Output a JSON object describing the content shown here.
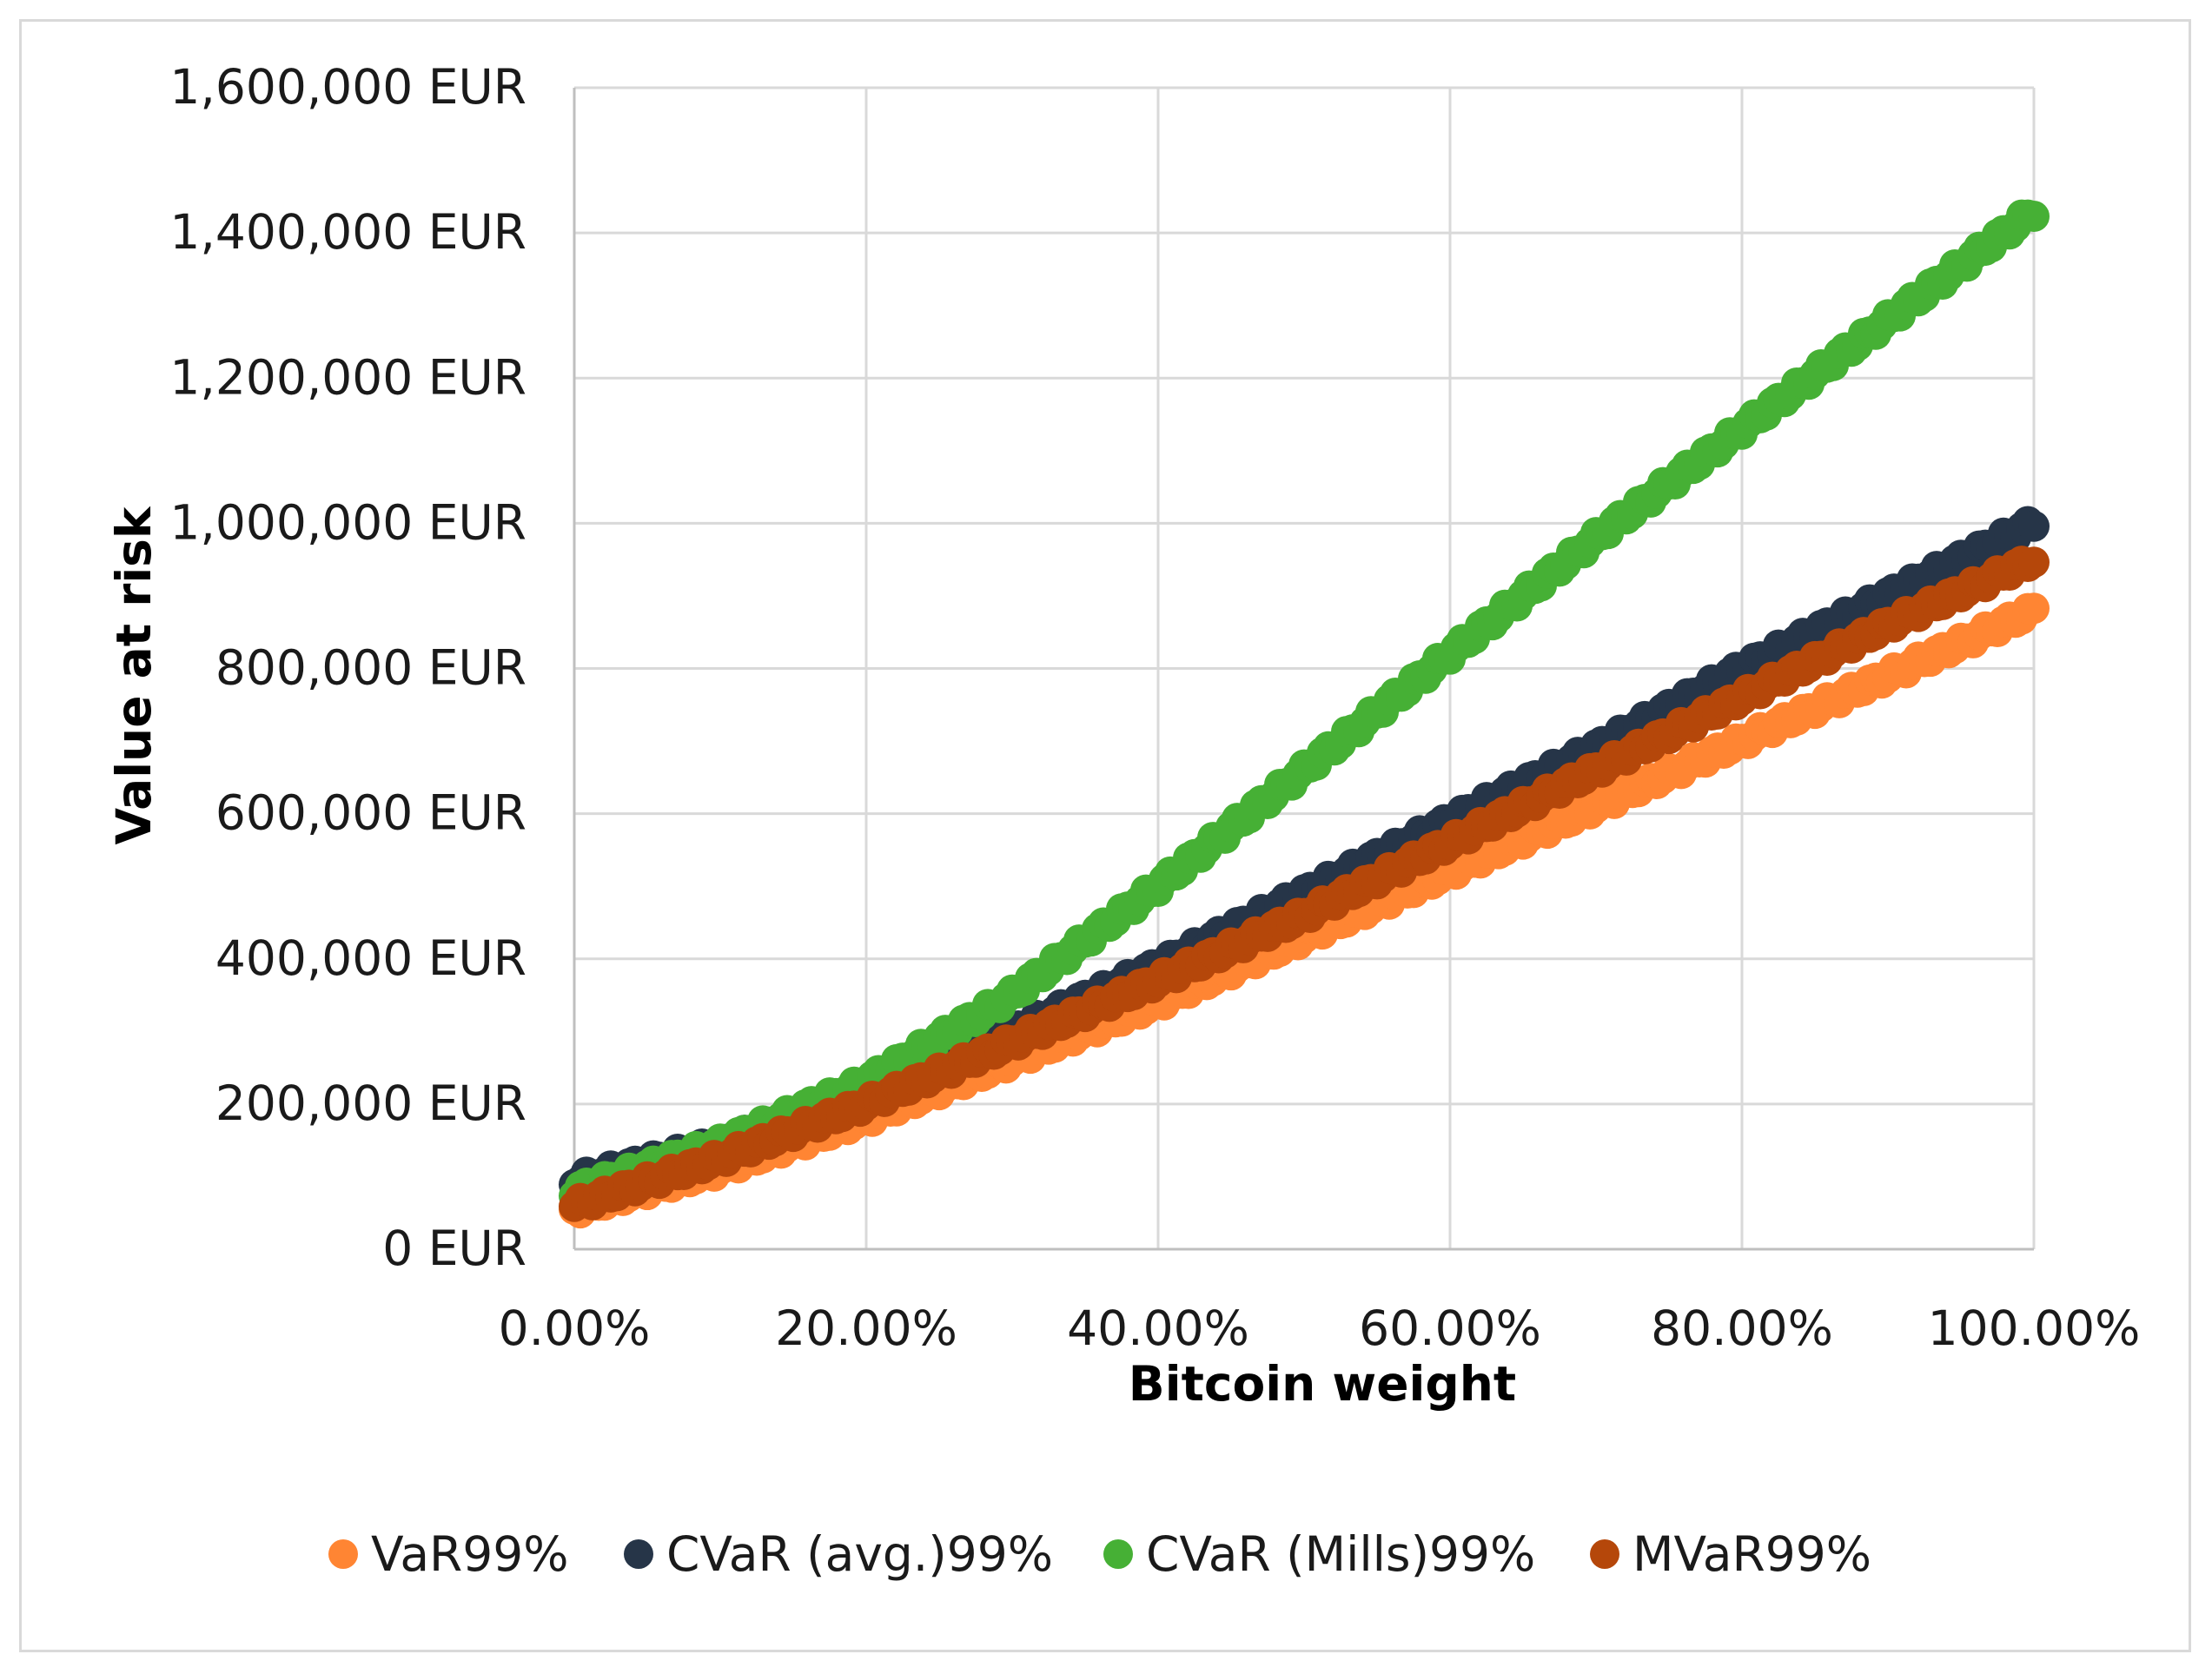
{
  "chart_data": {
    "type": "scatter",
    "title": "",
    "xlabel": "Bitcoin weight",
    "ylabel": "Value at risk",
    "xlim": [
      0,
      1
    ],
    "ylim": [
      0,
      1600000
    ],
    "x_ticks": [
      0,
      0.2,
      0.4,
      0.6,
      0.8,
      1.0
    ],
    "x_tick_labels": [
      "0.00%",
      "20.00%",
      "40.00%",
      "60.00%",
      "80.00%",
      "100.00%"
    ],
    "y_ticks": [
      0,
      200000,
      400000,
      600000,
      800000,
      1000000,
      1200000,
      1400000,
      1600000
    ],
    "y_tick_labels": [
      "0 EUR",
      "200,000 EUR",
      "400,000 EUR",
      "600,000 EUR",
      "800,000 EUR",
      "1,000,000 EUR",
      "1,200,000 EUR",
      "1,400,000 EUR",
      "1,600,000 EUR"
    ],
    "grid": true,
    "legend_position": "bottom",
    "x": [
      0,
      0.1,
      0.2,
      0.3,
      0.4,
      0.5,
      0.6,
      0.7,
      0.8,
      0.9,
      1.0
    ],
    "series": [
      {
        "name": "VaR99%",
        "color": "#ff8533",
        "values": [
          55000,
          110000,
          180000,
          260000,
          340000,
          430000,
          520000,
          610000,
          700000,
          790000,
          880000
        ]
      },
      {
        "name": "CVaR (avg.)99%",
        "color": "#263548",
        "values": [
          95000,
          145000,
          215000,
          300000,
          390000,
          490000,
          590000,
          690000,
          800000,
          900000,
          1000000
        ]
      },
      {
        "name": "CVaR (Mills)99%",
        "color": "#46b035",
        "values": [
          80000,
          145000,
          230000,
          350000,
          500000,
          660000,
          820000,
          980000,
          1130000,
          1280000,
          1430000
        ]
      },
      {
        "name": "MVaR99%",
        "color": "#b5470a",
        "values": [
          60000,
          125000,
          200000,
          285000,
          370000,
          460000,
          560000,
          660000,
          760000,
          860000,
          950000
        ]
      }
    ]
  }
}
